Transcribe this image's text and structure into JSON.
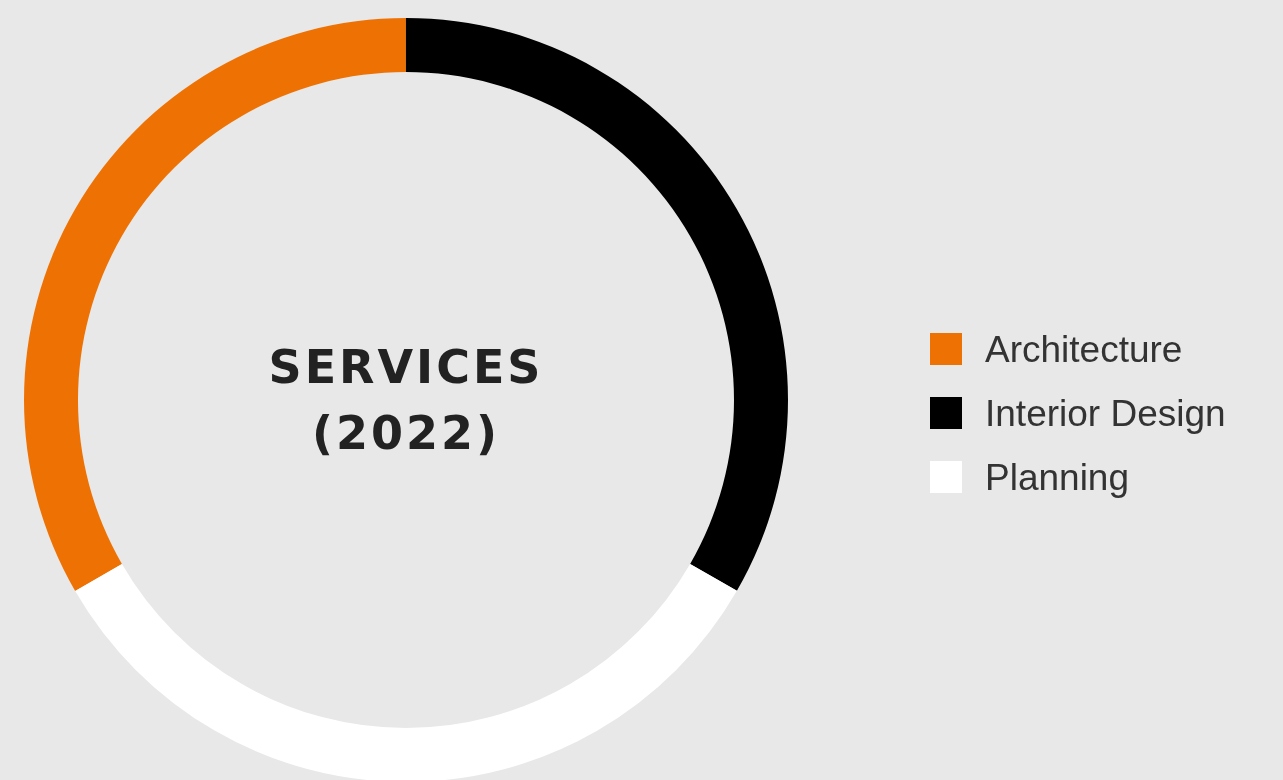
{
  "chart_data": {
    "type": "donut",
    "title": "SERVICES (2022)",
    "categories": [
      "Architecture",
      "Interior Design",
      "Planning"
    ],
    "values": [
      33.33,
      33.33,
      33.34
    ],
    "colors": [
      "#ee7203",
      "#000000",
      "#ffffff"
    ],
    "legend": "right"
  }
}
